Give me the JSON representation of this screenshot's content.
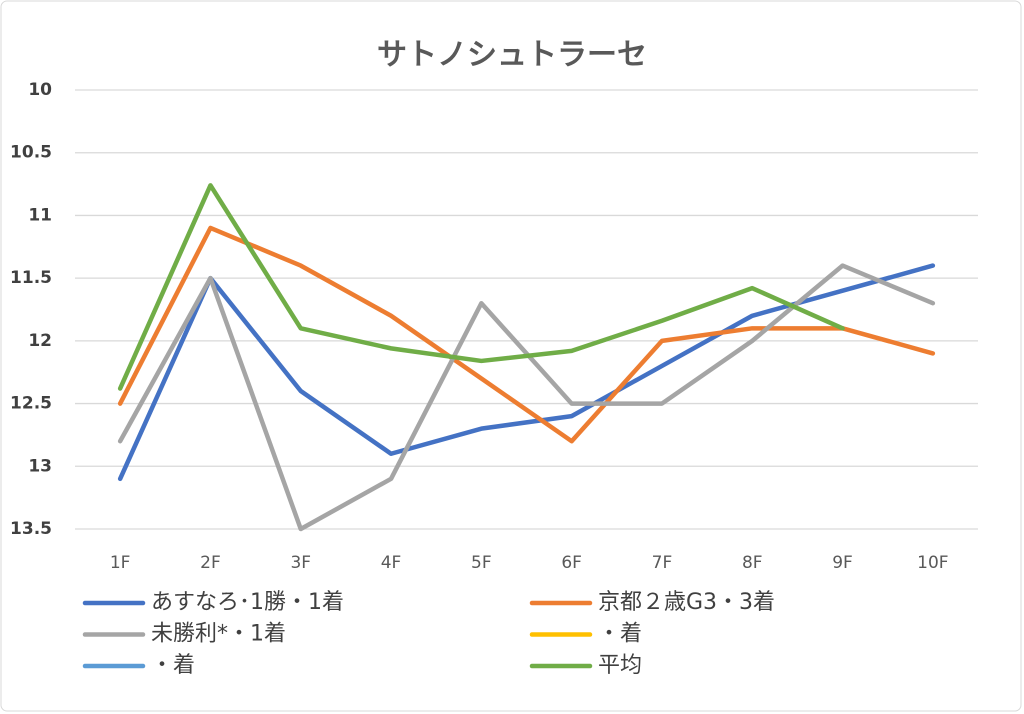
{
  "chart_data": {
    "type": "line",
    "title": "サトノシュトラーセ",
    "categories": [
      "1F",
      "2F",
      "3F",
      "4F",
      "5F",
      "6F",
      "7F",
      "8F",
      "9F",
      "10F"
    ],
    "ylim": [
      10,
      13.5
    ],
    "y_inverted": true,
    "yticks": [
      10,
      10.5,
      11,
      11.5,
      12,
      12.5,
      13,
      13.5
    ],
    "grid": true,
    "series": [
      {
        "name": "あすなろ･1勝・1着",
        "color": "#4472c4",
        "values": [
          13.1,
          11.5,
          12.4,
          12.9,
          12.7,
          12.6,
          12.2,
          11.8,
          11.6,
          11.4
        ]
      },
      {
        "name": "京都２歳G3・3着",
        "color": "#ed7d31",
        "values": [
          12.5,
          11.1,
          11.4,
          11.8,
          12.3,
          12.8,
          12.0,
          11.9,
          11.9,
          12.1
        ]
      },
      {
        "name": "未勝利*・1着",
        "color": "#a5a5a5",
        "values": [
          12.8,
          11.5,
          13.5,
          13.1,
          11.7,
          12.5,
          12.5,
          12.0,
          11.4,
          11.7
        ]
      },
      {
        "name": "・着",
        "color": "#ffc000",
        "values": [
          null,
          null,
          null,
          null,
          null,
          null,
          null,
          null,
          null,
          null
        ]
      },
      {
        "name": "・着",
        "color": "#5b9bd5",
        "values": [
          null,
          null,
          null,
          null,
          null,
          null,
          null,
          null,
          null,
          null
        ]
      },
      {
        "name": "平均",
        "color": "#70ad47",
        "values": [
          12.38,
          10.76,
          11.9,
          12.06,
          12.16,
          12.08,
          11.84,
          11.58,
          11.9,
          null
        ]
      }
    ]
  }
}
